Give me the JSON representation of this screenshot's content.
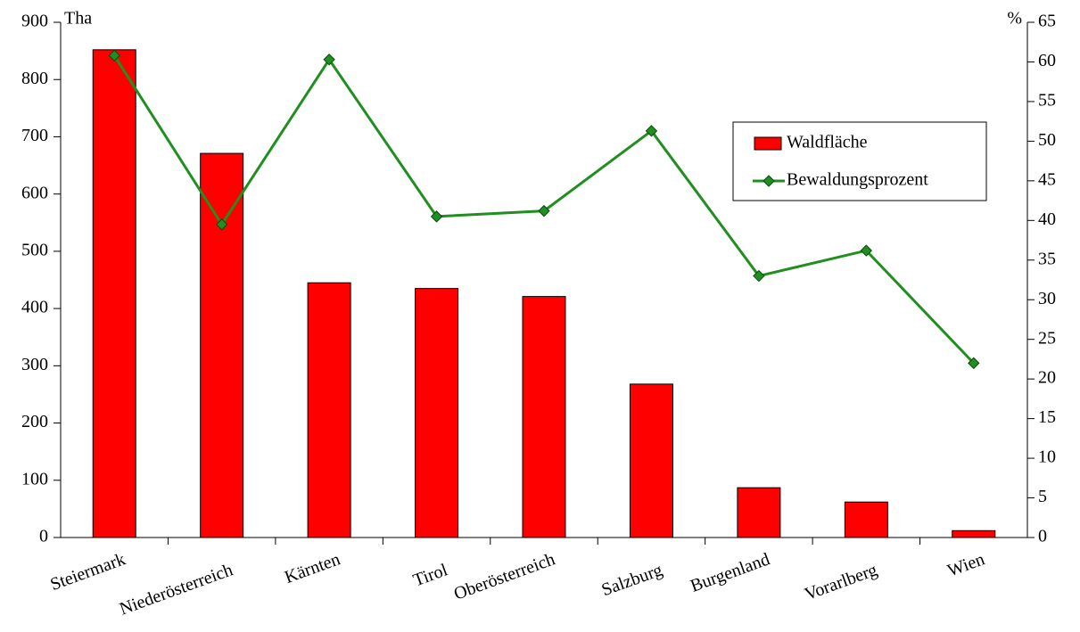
{
  "chart_data": {
    "type": "bar",
    "ylabel": "Tha",
    "y2label": "%",
    "categories": [
      "Steiermark",
      "Niederösterreich",
      "Kärnten",
      "Tirol",
      "Oberösterreich",
      "Salzburg",
      "Burgenland",
      "Vorarlberg",
      "Wien"
    ],
    "series": [
      {
        "name": "Waldfläche",
        "type": "bar",
        "color": "#ff0000",
        "values": [
          852,
          671,
          445,
          435,
          421,
          268,
          87,
          62,
          12
        ]
      },
      {
        "name": "Bewaldungsprozent",
        "type": "line",
        "axis": "y2",
        "color": "#1f8f1f",
        "values": [
          60.8,
          39.5,
          60.3,
          40.5,
          41.2,
          51.3,
          33.0,
          36.2,
          22.0
        ]
      }
    ],
    "ylim": [
      0,
      900
    ],
    "yticks": [
      0,
      100,
      200,
      300,
      400,
      500,
      600,
      700,
      800,
      900
    ],
    "y2lim": [
      0,
      65
    ],
    "y2ticks": [
      0,
      5,
      10,
      15,
      20,
      25,
      30,
      35,
      40,
      45,
      50,
      55,
      60,
      65
    ],
    "grid": false,
    "legend": "upper right"
  }
}
